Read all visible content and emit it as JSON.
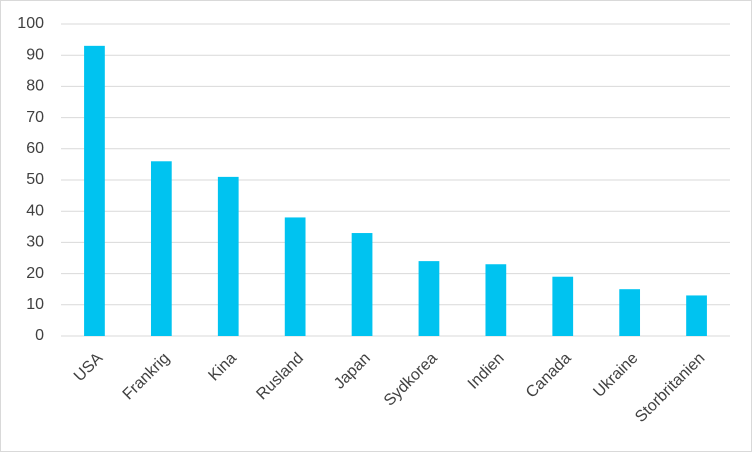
{
  "chart_data": {
    "type": "bar",
    "categories": [
      "USA",
      "Frankrig",
      "Kina",
      "Rusland",
      "Japan",
      "Sydkorea",
      "Indien",
      "Canada",
      "Ukraine",
      "Storbritanien"
    ],
    "values": [
      93,
      56,
      51,
      38,
      33,
      24,
      23,
      19,
      15,
      13
    ],
    "color": "#00c3f0",
    "ylim": [
      0,
      100
    ],
    "yticks": [
      0,
      10,
      20,
      30,
      40,
      50,
      60,
      70,
      80,
      90,
      100
    ],
    "grid": true
  }
}
